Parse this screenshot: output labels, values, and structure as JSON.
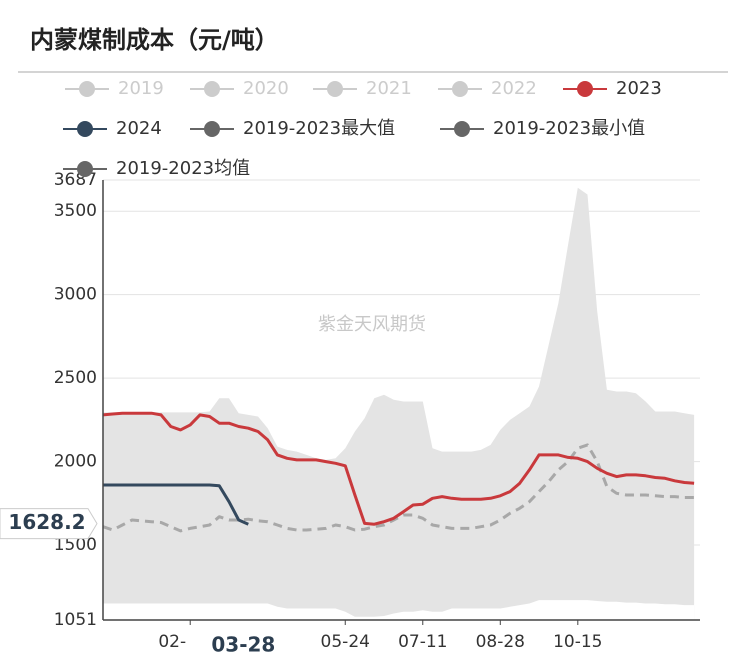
{
  "chart_data": {
    "type": "line",
    "title": "内蒙煤制成本（元/吨）",
    "watermark": "紫金天风期货",
    "categories": [
      null,
      null,
      null,
      null,
      null,
      null,
      null,
      null,
      null,
      "02-",
      null,
      null,
      null,
      null,
      null,
      "03-28",
      null,
      null,
      null,
      null,
      null,
      null,
      null,
      null,
      null,
      "05-24",
      null,
      null,
      null,
      null,
      null,
      null,
      null,
      "07-11",
      null,
      null,
      null,
      null,
      null,
      null,
      null,
      "08-28",
      null,
      null,
      null,
      null,
      null,
      null,
      null,
      "10-15",
      null,
      null,
      null,
      null,
      null,
      null,
      null,
      null,
      null,
      null,
      null,
      null
    ],
    "axis_pointer": {
      "x": "03-28",
      "y": 1628.2
    },
    "ylim": [
      1051,
      3687
    ],
    "yticks": [
      1051,
      1500,
      2000,
      2500,
      3000,
      3500,
      3687
    ],
    "grid": true,
    "series": [
      {
        "name": "2019",
        "color": "#cccccc",
        "visible": false
      },
      {
        "name": "2020",
        "color": "#cccccc",
        "visible": false
      },
      {
        "name": "2021",
        "color": "#cccccc",
        "visible": false
      },
      {
        "name": "2022",
        "color": "#cccccc",
        "visible": false
      },
      {
        "name": "2023",
        "color": "#c9393c",
        "style": "solid",
        "values": [
          2280,
          2285,
          2290,
          2290,
          2290,
          2290,
          2280,
          2210,
          2190,
          2220,
          2280,
          2270,
          2230,
          2230,
          2210,
          2200,
          2180,
          2130,
          2040,
          2020,
          2010,
          2010,
          2010,
          2000,
          1990,
          1975,
          1800,
          1630,
          1625,
          1640,
          1660,
          1700,
          1740,
          1745,
          1780,
          1790,
          1780,
          1775,
          1775,
          1775,
          1780,
          1795,
          1820,
          1870,
          1950,
          2040,
          2040,
          2040,
          2025,
          2020,
          2000,
          1960,
          1930,
          1910,
          1920,
          1920,
          1915,
          1905,
          1900,
          1885,
          1875,
          1870
        ]
      },
      {
        "name": "2024",
        "color": "#34495e",
        "style": "solid",
        "values": [
          1860,
          1860,
          1860,
          1860,
          1860,
          1860,
          1860,
          1860,
          1860,
          1860,
          1860,
          1860,
          1855,
          1760,
          1650,
          1625,
          null,
          null,
          null,
          null,
          null,
          null,
          null,
          null,
          null,
          null,
          null,
          null,
          null,
          null,
          null,
          null,
          null,
          null,
          null,
          null,
          null,
          null,
          null,
          null,
          null,
          null,
          null,
          null,
          null,
          null,
          null,
          null,
          null,
          null,
          null,
          null,
          null,
          null,
          null,
          null,
          null,
          null,
          null,
          null,
          null,
          null
        ]
      },
      {
        "name": "2019-2023最大值",
        "color": "#666666",
        "style": "band-top",
        "values": [
          2295,
          2295,
          2295,
          2295,
          2295,
          2295,
          2295,
          2295,
          2295,
          2295,
          2295,
          2300,
          2380,
          2380,
          2290,
          2280,
          2270,
          2200,
          2090,
          2070,
          2060,
          2040,
          2020,
          2010,
          2020,
          2080,
          2180,
          2260,
          2380,
          2400,
          2370,
          2360,
          2360,
          2360,
          2080,
          2060,
          2060,
          2060,
          2060,
          2070,
          2100,
          2190,
          2250,
          2290,
          2330,
          2450,
          2700,
          2950,
          3300,
          3640,
          3600,
          2900,
          2430,
          2420,
          2420,
          2410,
          2360,
          2300,
          2300,
          2300,
          2290,
          2280
        ]
      },
      {
        "name": "2019-2023最小值",
        "color": "#666666",
        "style": "band-bottom",
        "values": [
          1150,
          1150,
          1150,
          1150,
          1150,
          1150,
          1150,
          1150,
          1150,
          1150,
          1150,
          1150,
          1150,
          1150,
          1150,
          1150,
          1150,
          1150,
          1130,
          1120,
          1120,
          1120,
          1120,
          1120,
          1120,
          1100,
          1070,
          1070,
          1070,
          1075,
          1090,
          1100,
          1100,
          1110,
          1100,
          1100,
          1120,
          1120,
          1120,
          1120,
          1120,
          1120,
          1130,
          1140,
          1150,
          1170,
          1170,
          1170,
          1170,
          1170,
          1170,
          1165,
          1160,
          1160,
          1155,
          1155,
          1150,
          1150,
          1145,
          1145,
          1140,
          1140
        ]
      },
      {
        "name": "2019-2023均值",
        "color": "#666666",
        "style": "dashed",
        "values": [
          1610,
          1590,
          1620,
          1650,
          1645,
          1640,
          1635,
          1610,
          1585,
          1600,
          1610,
          1620,
          1670,
          1650,
          1650,
          1655,
          1645,
          1640,
          1620,
          1600,
          1590,
          1590,
          1595,
          1600,
          1620,
          1610,
          1590,
          1595,
          1610,
          1620,
          1650,
          1680,
          1680,
          1660,
          1620,
          1610,
          1600,
          1600,
          1600,
          1610,
          1620,
          1650,
          1690,
          1720,
          1760,
          1820,
          1880,
          1950,
          2000,
          2080,
          2100,
          2000,
          1850,
          1810,
          1800,
          1800,
          1800,
          1795,
          1790,
          1790,
          1785,
          1785
        ]
      }
    ]
  }
}
